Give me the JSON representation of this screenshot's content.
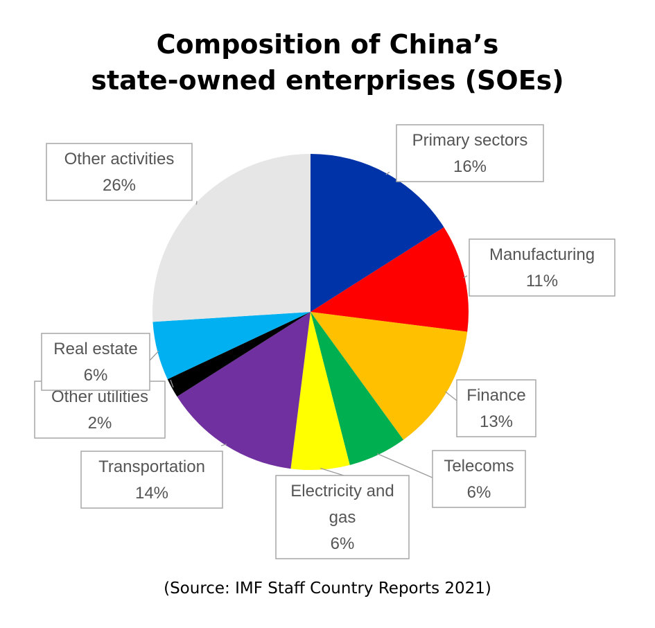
{
  "title_lines": [
    "Composition of China’s",
    "state-owned enterprises (SOEs)"
  ],
  "source": "(Source: IMF Staff Country Reports 2021)",
  "chart_data": {
    "type": "pie",
    "title": "Composition of China’s state-owned enterprises (SOEs)",
    "unit": "%",
    "start": "12 o'clock",
    "direction": "clockwise",
    "slices": [
      {
        "label": "Primary sectors",
        "value": 16,
        "color": "#0033A8"
      },
      {
        "label": "Manufacturing",
        "value": 11,
        "color": "#FF0000"
      },
      {
        "label": "Finance",
        "value": 13,
        "color": "#FFC000"
      },
      {
        "label": "Telecoms",
        "value": 6,
        "color": "#00B050"
      },
      {
        "label": "Electricity and gas",
        "value": 6,
        "color": "#FFFF00"
      },
      {
        "label": "Transportation",
        "value": 14,
        "color": "#7030A0"
      },
      {
        "label": "Other utilities",
        "value": 2,
        "color": "#000000"
      },
      {
        "label": "Real estate",
        "value": 6,
        "color": "#00B0F0"
      },
      {
        "label": "Other activities",
        "value": 26,
        "color": "#E6E6E6"
      }
    ]
  }
}
